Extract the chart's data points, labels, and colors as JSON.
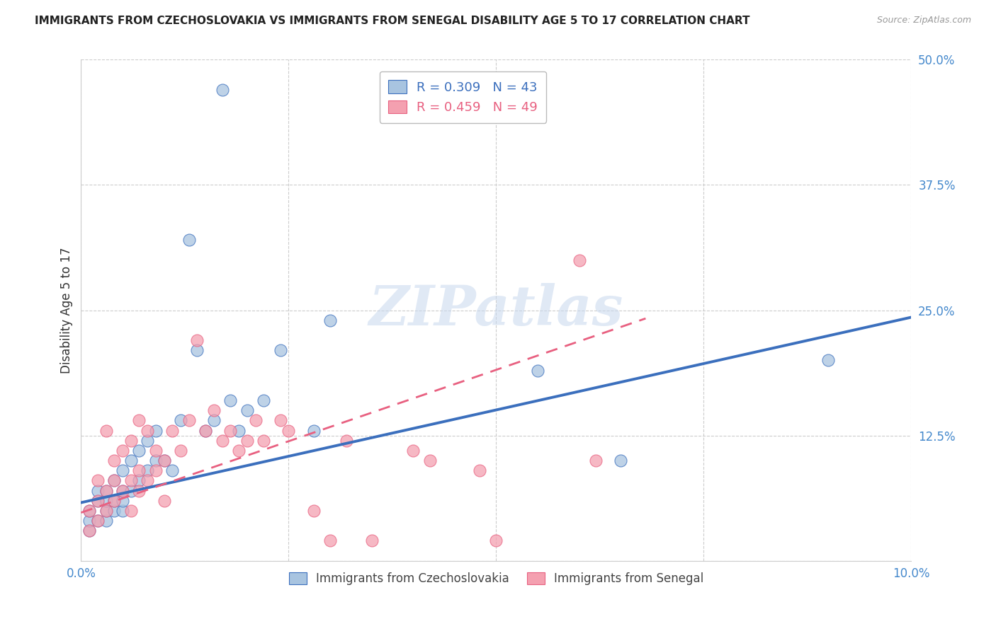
{
  "title": "IMMIGRANTS FROM CZECHOSLOVAKIA VS IMMIGRANTS FROM SENEGAL DISABILITY AGE 5 TO 17 CORRELATION CHART",
  "source": "Source: ZipAtlas.com",
  "ylabel": "Disability Age 5 to 17",
  "xlim": [
    0.0,
    0.1
  ],
  "ylim": [
    0.0,
    0.5
  ],
  "xticks": [
    0.0,
    0.025,
    0.05,
    0.075,
    0.1
  ],
  "yticks": [
    0.0,
    0.125,
    0.25,
    0.375,
    0.5
  ],
  "xticklabels": [
    "0.0%",
    "",
    "",
    "",
    "10.0%"
  ],
  "yticklabels": [
    "",
    "12.5%",
    "25.0%",
    "37.5%",
    "50.0%"
  ],
  "legend_blue_label": "Immigrants from Czechoslovakia",
  "legend_pink_label": "Immigrants from Senegal",
  "blue_R": "0.309",
  "blue_N": "43",
  "pink_R": "0.459",
  "pink_N": "49",
  "blue_color": "#a8c4e0",
  "pink_color": "#f4a0b0",
  "blue_line_color": "#3b6fbd",
  "pink_line_color": "#e86080",
  "watermark": "ZIPatlas",
  "blue_scatter_x": [
    0.001,
    0.001,
    0.001,
    0.002,
    0.002,
    0.002,
    0.003,
    0.003,
    0.003,
    0.003,
    0.004,
    0.004,
    0.004,
    0.005,
    0.005,
    0.005,
    0.005,
    0.006,
    0.006,
    0.007,
    0.007,
    0.008,
    0.008,
    0.009,
    0.009,
    0.01,
    0.011,
    0.012,
    0.013,
    0.014,
    0.015,
    0.016,
    0.017,
    0.018,
    0.019,
    0.02,
    0.022,
    0.024,
    0.028,
    0.03,
    0.055,
    0.065,
    0.09
  ],
  "blue_scatter_y": [
    0.03,
    0.04,
    0.05,
    0.04,
    0.06,
    0.07,
    0.04,
    0.05,
    0.06,
    0.07,
    0.05,
    0.06,
    0.08,
    0.05,
    0.06,
    0.07,
    0.09,
    0.07,
    0.1,
    0.08,
    0.11,
    0.09,
    0.12,
    0.1,
    0.13,
    0.1,
    0.09,
    0.14,
    0.32,
    0.21,
    0.13,
    0.14,
    0.47,
    0.16,
    0.13,
    0.15,
    0.16,
    0.21,
    0.13,
    0.24,
    0.19,
    0.1,
    0.2
  ],
  "pink_scatter_x": [
    0.001,
    0.001,
    0.002,
    0.002,
    0.002,
    0.003,
    0.003,
    0.003,
    0.004,
    0.004,
    0.004,
    0.005,
    0.005,
    0.006,
    0.006,
    0.006,
    0.007,
    0.007,
    0.007,
    0.008,
    0.008,
    0.009,
    0.009,
    0.01,
    0.01,
    0.011,
    0.012,
    0.013,
    0.014,
    0.015,
    0.016,
    0.017,
    0.018,
    0.019,
    0.02,
    0.021,
    0.022,
    0.024,
    0.025,
    0.028,
    0.03,
    0.032,
    0.035,
    0.04,
    0.042,
    0.048,
    0.05,
    0.06,
    0.062
  ],
  "pink_scatter_y": [
    0.03,
    0.05,
    0.04,
    0.06,
    0.08,
    0.05,
    0.07,
    0.13,
    0.06,
    0.08,
    0.1,
    0.07,
    0.11,
    0.05,
    0.08,
    0.12,
    0.07,
    0.09,
    0.14,
    0.08,
    0.13,
    0.09,
    0.11,
    0.06,
    0.1,
    0.13,
    0.11,
    0.14,
    0.22,
    0.13,
    0.15,
    0.12,
    0.13,
    0.11,
    0.12,
    0.14,
    0.12,
    0.14,
    0.13,
    0.05,
    0.02,
    0.12,
    0.02,
    0.11,
    0.1,
    0.09,
    0.02,
    0.3,
    0.1
  ],
  "blue_line_x": [
    0.0,
    0.1
  ],
  "blue_line_y_intercept": 0.058,
  "blue_line_slope": 1.85,
  "pink_line_x": [
    0.0,
    0.068
  ],
  "pink_line_y_intercept": 0.048,
  "pink_line_slope": 2.85
}
